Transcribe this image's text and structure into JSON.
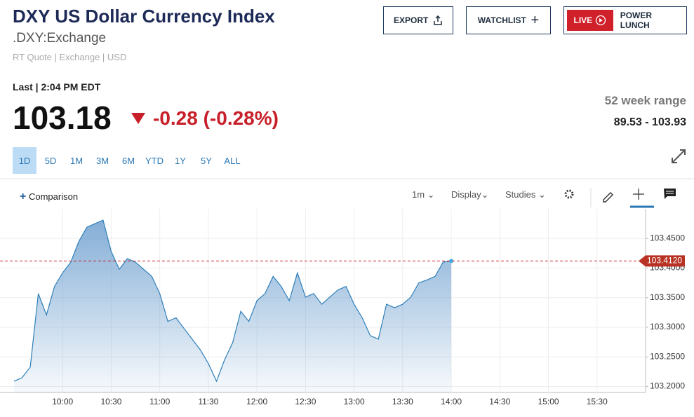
{
  "header": {
    "title": "DXY US Dollar Currency Index",
    "symbol": ".DXY:Exchange",
    "meta": "RT Quote | Exchange | USD"
  },
  "buttons": {
    "export": "EXPORT",
    "watchlist": "WATCHLIST",
    "live": "LIVE",
    "power_lunch": "POWER LUNCH"
  },
  "quote": {
    "last_label": "Last | 2:04 PM EDT",
    "price": "103.18",
    "change": "-0.28 (-0.28%)",
    "range_label": "52 week range",
    "range": "89.53 - 103.93"
  },
  "periods": [
    "1D",
    "5D",
    "1M",
    "3M",
    "6M",
    "YTD",
    "1Y",
    "5Y",
    "ALL"
  ],
  "toolbar": {
    "comparison": "Comparison",
    "interval": "1m",
    "display": "Display",
    "studies": "Studies"
  },
  "chart_data": {
    "type": "area",
    "color": "#2f7fb8",
    "x": [
      "9:30",
      "9:35",
      "9:40",
      "9:45",
      "9:50",
      "9:55",
      "10:00",
      "10:05",
      "10:10",
      "10:15",
      "10:20",
      "10:25",
      "10:30",
      "10:35",
      "10:40",
      "10:45",
      "10:50",
      "10:55",
      "11:00",
      "11:05",
      "11:10",
      "11:15",
      "11:20",
      "11:25",
      "11:30",
      "11:35",
      "11:40",
      "11:45",
      "11:50",
      "11:55",
      "12:00",
      "12:05",
      "12:10",
      "12:15",
      "12:20",
      "12:25",
      "12:30",
      "12:35",
      "12:40",
      "12:45",
      "12:50",
      "12:55",
      "13:00",
      "13:05",
      "13:10",
      "13:15",
      "13:20",
      "13:25",
      "13:30",
      "13:35",
      "13:40",
      "13:45",
      "13:50",
      "13:55",
      "14:00"
    ],
    "values": [
      103.209,
      103.215,
      103.233,
      103.357,
      103.321,
      103.369,
      103.392,
      103.41,
      103.445,
      103.469,
      103.475,
      103.481,
      103.428,
      103.398,
      103.416,
      103.41,
      103.398,
      103.386,
      103.357,
      103.31,
      103.316,
      103.298,
      103.28,
      103.262,
      103.239,
      103.209,
      103.245,
      103.274,
      103.327,
      103.31,
      103.345,
      103.357,
      103.386,
      103.369,
      103.345,
      103.392,
      103.351,
      103.357,
      103.339,
      103.351,
      103.363,
      103.369,
      103.339,
      103.316,
      103.286,
      103.28,
      103.339,
      103.333,
      103.339,
      103.351,
      103.375,
      103.38,
      103.386,
      103.41,
      103.412
    ],
    "xlim": [
      "9:30",
      "16:00"
    ],
    "xticks": [
      "10:00",
      "10:30",
      "11:00",
      "11:30",
      "12:00",
      "12:30",
      "13:00",
      "13:30",
      "14:00",
      "14:30",
      "15:00",
      "15:30"
    ],
    "ylim": [
      103.19,
      103.5
    ],
    "yticks": [
      {
        "value": 103.2,
        "label": "103.2000"
      },
      {
        "value": 103.25,
        "label": "103.2500"
      },
      {
        "value": 103.3,
        "label": "103.3000"
      },
      {
        "value": 103.35,
        "label": "103.3500"
      },
      {
        "value": 103.4,
        "label": "103.4000"
      },
      {
        "value": 103.45,
        "label": "103.4500"
      }
    ],
    "last_value": {
      "value": 103.412,
      "label": "103.4120"
    },
    "grid": true
  }
}
